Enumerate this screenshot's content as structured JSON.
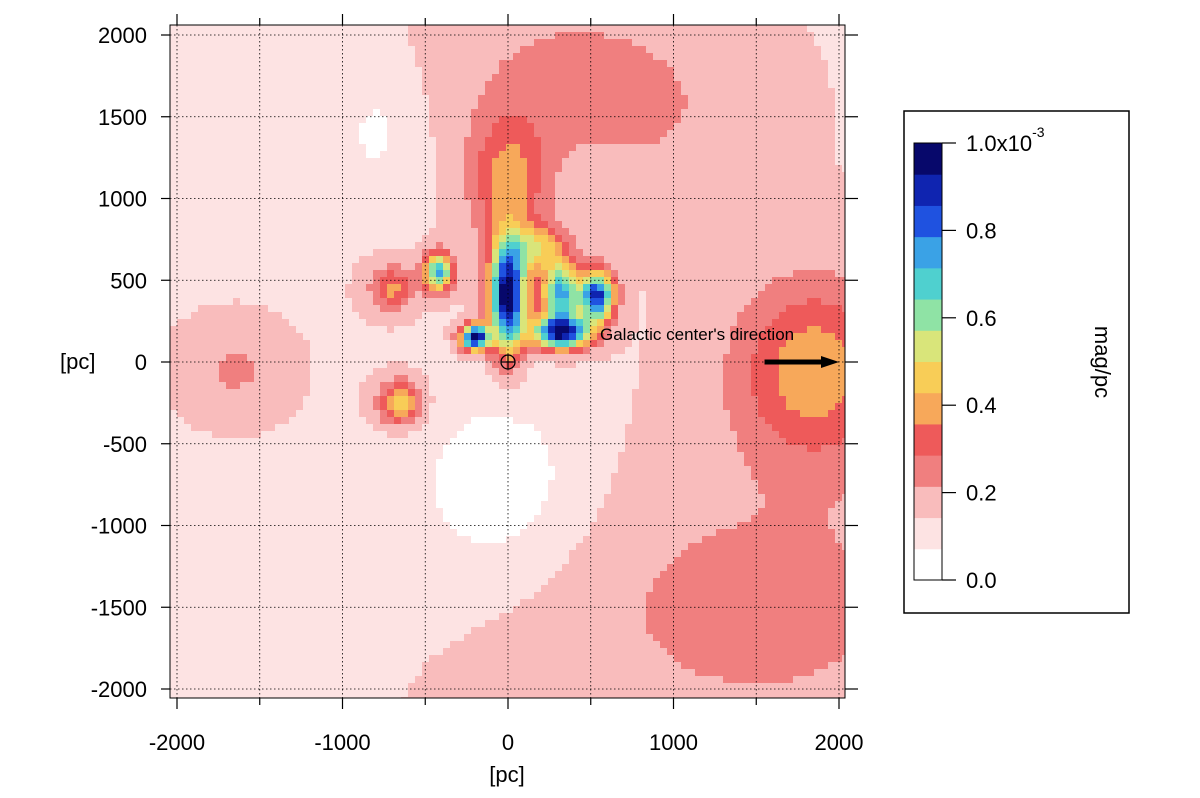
{
  "chart_data": {
    "type": "heatmap",
    "title": "",
    "xlabel": "[pc]",
    "ylabel": "[pc]",
    "xlim": [
      -2050,
      2050
    ],
    "ylim": [
      -2050,
      2050
    ],
    "x_ticks": [
      -2000,
      -1000,
      0,
      1000,
      2000
    ],
    "y_ticks": [
      2000,
      1500,
      1000,
      500,
      0,
      -500,
      -1000,
      -1500,
      -2000
    ],
    "grid": true,
    "colorbar": {
      "label": "mag/pc",
      "range": [
        0,
        0.001
      ],
      "ticks": [
        {
          "value": 0.0,
          "label": "0.0"
        },
        {
          "value": 0.0002,
          "label": "0.2"
        },
        {
          "value": 0.0004,
          "label": "0.4"
        },
        {
          "value": 0.0006,
          "label": "0.6"
        },
        {
          "value": 0.0008,
          "label": "0.8"
        },
        {
          "value": 0.001,
          "label": "1.0x10",
          "exponent": "-3"
        }
      ],
      "colors": [
        "#ffffff",
        "#fde3e3",
        "#f9bcbc",
        "#f07f7f",
        "#ee5a5a",
        "#f7a85a",
        "#f8cd57",
        "#d9e57a",
        "#8fe3a5",
        "#4fd0cf",
        "#3aa2e6",
        "#1f52e0",
        "#0f24b0",
        "#07086b"
      ]
    },
    "field": {
      "background": 0.00014,
      "components": [
        {
          "x": 0,
          "y": 1100,
          "sx": 160,
          "sy": 280,
          "amp": 0.00024
        },
        {
          "x": 350,
          "y": 1700,
          "sx": 450,
          "sy": 350,
          "amp": 0.0001
        },
        {
          "x": 1850,
          "y": -50,
          "sx": 330,
          "sy": 380,
          "amp": 0.00027
        },
        {
          "x": 1500,
          "y": -1500,
          "sx": 900,
          "sy": 600,
          "amp": 0.0001
        },
        {
          "x": -1650,
          "y": -50,
          "sx": 180,
          "sy": 160,
          "amp": 9e-05
        },
        {
          "x": 1000,
          "y": 1500,
          "sx": 400,
          "sy": 400,
          "amp": 5e-05
        },
        {
          "x": -50,
          "y": -750,
          "sx": 380,
          "sy": 420,
          "amp": -0.00012
        },
        {
          "x": -800,
          "y": 1400,
          "sx": 180,
          "sy": 280,
          "amp": -8e-05
        },
        {
          "x": -1100,
          "y": -1300,
          "sx": 400,
          "sy": 300,
          "amp": -4e-05
        },
        {
          "x": -200,
          "y": 150,
          "sx": 60,
          "sy": 55,
          "amp": 0.00085
        },
        {
          "x": 0,
          "y": 400,
          "sx": 75,
          "sy": 230,
          "amp": 0.00088
        },
        {
          "x": 320,
          "y": 180,
          "sx": 120,
          "sy": 70,
          "amp": 0.00078
        },
        {
          "x": 540,
          "y": 400,
          "sx": 70,
          "sy": 110,
          "amp": 0.00075
        },
        {
          "x": 320,
          "y": 420,
          "sx": 80,
          "sy": 130,
          "amp": 0.0006
        },
        {
          "x": -420,
          "y": 550,
          "sx": 60,
          "sy": 80,
          "amp": 0.0006
        },
        {
          "x": -700,
          "y": 450,
          "sx": 90,
          "sy": 90,
          "amp": 0.00025
        },
        {
          "x": -650,
          "y": -250,
          "sx": 90,
          "sy": 90,
          "amp": 0.00035
        },
        {
          "x": 180,
          "y": 700,
          "sx": 120,
          "sy": 100,
          "amp": 0.0003
        }
      ]
    },
    "markers": [
      {
        "name": "sun-symbol",
        "x": 0,
        "y": 0,
        "symbol": "⊕"
      }
    ],
    "annotations": [
      {
        "text": "Galactic center's direction",
        "arrow_from": [
          1550,
          0
        ],
        "arrow_to": [
          2000,
          0
        ]
      }
    ],
    "axis_row_labels": {
      "y_left": "[pc]",
      "zero": "0"
    }
  }
}
